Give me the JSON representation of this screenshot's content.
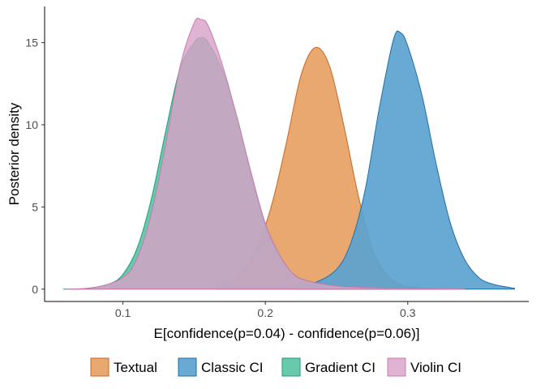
{
  "chart_data": {
    "type": "area",
    "title": "",
    "xlabel": "E[confidence(p=0.04) - confidence(p=0.06)]",
    "ylabel": "Posterior density",
    "xlim": [
      0.045,
      0.385
    ],
    "ylim": [
      -0.75,
      17.2
    ],
    "x_ticks": [
      0.1,
      0.2,
      0.3
    ],
    "x_tick_labels": [
      "0.1",
      "0.2",
      "0.3"
    ],
    "y_ticks": [
      0,
      5,
      10,
      15
    ],
    "y_tick_labels": [
      "0",
      "5",
      "10",
      "15"
    ],
    "grid": false,
    "legend_position": "bottom",
    "series": [
      {
        "name": "Textual",
        "color": "#E69F5F",
        "stroke": "#C9661E",
        "opacity": 0.9,
        "x": [
          0.165,
          0.175,
          0.185,
          0.195,
          0.205,
          0.215,
          0.225,
          0.235,
          0.245,
          0.255,
          0.265,
          0.275,
          0.285,
          0.295,
          0.305,
          0.32
        ],
        "y": [
          0.3,
          0.6,
          1.2,
          2.7,
          5.3,
          9.0,
          13.0,
          14.7,
          13.6,
          10.0,
          5.8,
          2.5,
          0.9,
          0.3,
          0.1,
          0
        ]
      },
      {
        "name": "Classic CI",
        "color": "#5BA3D0",
        "stroke": "#1F6FA8",
        "opacity": 0.92,
        "x": [
          0.22,
          0.235,
          0.25,
          0.26,
          0.27,
          0.28,
          0.29,
          0.295,
          0.3,
          0.31,
          0.32,
          0.33,
          0.34,
          0.35,
          0.36,
          0.375
        ],
        "y": [
          0.1,
          0.4,
          1.2,
          2.8,
          6.0,
          11.0,
          15.2,
          15.6,
          14.8,
          11.8,
          7.6,
          4.0,
          1.8,
          0.7,
          0.3,
          0.05
        ]
      },
      {
        "name": "Gradient CI",
        "color": "#4FBF9E",
        "stroke": "#1E9E73",
        "opacity": 0.85,
        "x": [
          0.058,
          0.075,
          0.09,
          0.1,
          0.11,
          0.12,
          0.13,
          0.14,
          0.15,
          0.155,
          0.16,
          0.17,
          0.18,
          0.19,
          0.2,
          0.21,
          0.22,
          0.23,
          0.25,
          0.27,
          0.3,
          0.33
        ],
        "y": [
          0,
          0.05,
          0.3,
          0.9,
          2.5,
          5.5,
          9.6,
          13.4,
          15.0,
          15.3,
          15.0,
          13.3,
          10.5,
          7.0,
          3.9,
          2.0,
          0.9,
          0.5,
          0.2,
          0.1,
          0.05,
          0
        ]
      },
      {
        "name": "Violin CI",
        "color": "#D9A0C8",
        "stroke": "#C77BB0",
        "opacity": 0.8,
        "x": [
          0.06,
          0.08,
          0.1,
          0.11,
          0.12,
          0.13,
          0.14,
          0.15,
          0.155,
          0.16,
          0.17,
          0.18,
          0.19,
          0.2,
          0.21,
          0.22,
          0.23,
          0.25,
          0.27,
          0.3,
          0.34
        ],
        "y": [
          0,
          0.1,
          0.7,
          1.9,
          4.6,
          8.8,
          13.5,
          16.2,
          16.4,
          16.0,
          13.6,
          10.5,
          7.1,
          4.0,
          2.1,
          0.9,
          0.5,
          0.2,
          0.1,
          0.05,
          0
        ]
      }
    ]
  }
}
